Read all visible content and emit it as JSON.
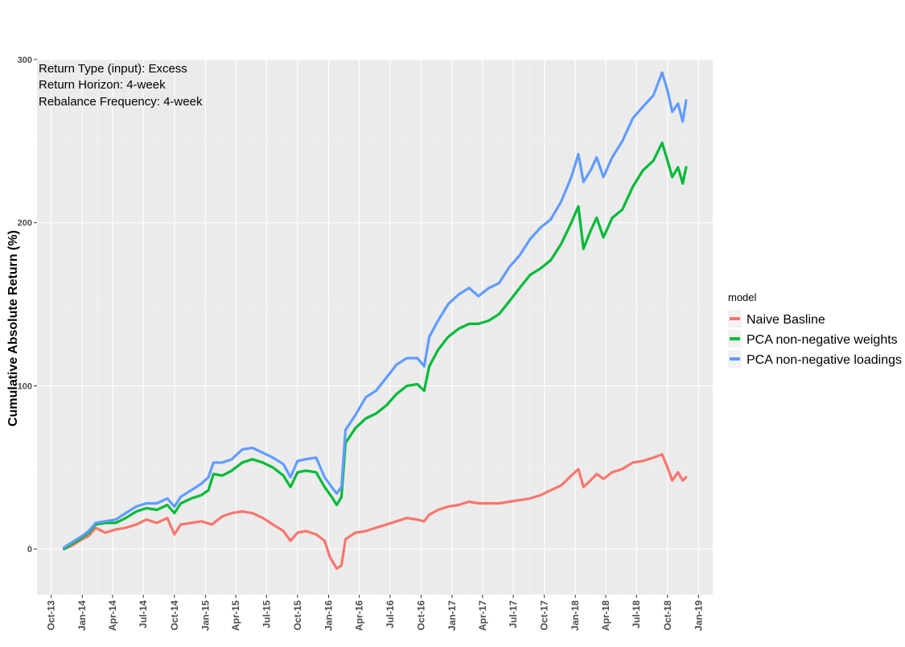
{
  "chart_data": {
    "type": "line",
    "title": "",
    "xlabel": "",
    "ylabel": "Cumulative Absolute Return (%)",
    "ylim": [
      -28,
      300
    ],
    "xlim": [
      "2013-08-20",
      "2019-02-12"
    ],
    "grid": true,
    "legend_position": "right",
    "legend_title": "model",
    "annotations": [
      "Return Type (input): Excess",
      "Return Horizon: 4-week",
      "Rebalance Frequency: 4-week"
    ],
    "y_ticks": [
      0,
      100,
      200,
      300
    ],
    "x_ticks": [
      {
        "date": "2013-10-01",
        "label": "Oct-13"
      },
      {
        "date": "2014-01-01",
        "label": "Jan-14"
      },
      {
        "date": "2014-04-01",
        "label": "Apr-14"
      },
      {
        "date": "2014-07-01",
        "label": "Jul-14"
      },
      {
        "date": "2014-10-01",
        "label": "Oct-14"
      },
      {
        "date": "2015-01-01",
        "label": "Jan-15"
      },
      {
        "date": "2015-04-01",
        "label": "Apr-15"
      },
      {
        "date": "2015-07-01",
        "label": "Jul-15"
      },
      {
        "date": "2015-10-01",
        "label": "Oct-15"
      },
      {
        "date": "2016-01-01",
        "label": "Jan-16"
      },
      {
        "date": "2016-04-01",
        "label": "Apr-16"
      },
      {
        "date": "2016-07-01",
        "label": "Jul-16"
      },
      {
        "date": "2016-10-01",
        "label": "Oct-16"
      },
      {
        "date": "2017-01-01",
        "label": "Jan-17"
      },
      {
        "date": "2017-04-01",
        "label": "Apr-17"
      },
      {
        "date": "2017-07-01",
        "label": "Jul-17"
      },
      {
        "date": "2017-10-01",
        "label": "Oct-17"
      },
      {
        "date": "2018-01-01",
        "label": "Jan-18"
      },
      {
        "date": "2018-04-01",
        "label": "Apr-18"
      },
      {
        "date": "2018-07-01",
        "label": "Jul-18"
      },
      {
        "date": "2018-10-01",
        "label": "Oct-18"
      },
      {
        "date": "2019-01-01",
        "label": "Jan-19"
      }
    ],
    "series": [
      {
        "name": "Naive Basline",
        "color": "#F8766D",
        "points": [
          [
            "2013-11-08",
            0
          ],
          [
            "2013-12-01",
            2
          ],
          [
            "2014-01-01",
            6
          ],
          [
            "2014-01-20",
            8
          ],
          [
            "2014-02-10",
            13
          ],
          [
            "2014-03-10",
            10
          ],
          [
            "2014-04-10",
            12
          ],
          [
            "2014-05-10",
            13
          ],
          [
            "2014-06-10",
            15
          ],
          [
            "2014-07-10",
            18
          ],
          [
            "2014-08-10",
            16
          ],
          [
            "2014-09-10",
            19
          ],
          [
            "2014-10-01",
            9
          ],
          [
            "2014-10-20",
            15
          ],
          [
            "2014-11-20",
            16
          ],
          [
            "2014-12-20",
            17
          ],
          [
            "2015-01-20",
            15
          ],
          [
            "2015-02-20",
            20
          ],
          [
            "2015-03-20",
            22
          ],
          [
            "2015-04-20",
            23
          ],
          [
            "2015-05-20",
            22
          ],
          [
            "2015-06-20",
            19
          ],
          [
            "2015-07-20",
            15
          ],
          [
            "2015-08-20",
            11
          ],
          [
            "2015-09-10",
            5
          ],
          [
            "2015-10-01",
            10
          ],
          [
            "2015-10-25",
            11
          ],
          [
            "2015-11-25",
            9
          ],
          [
            "2015-12-20",
            5
          ],
          [
            "2016-01-05",
            -5
          ],
          [
            "2016-01-25",
            -12
          ],
          [
            "2016-02-08",
            -10
          ],
          [
            "2016-02-20",
            6
          ],
          [
            "2016-03-20",
            10
          ],
          [
            "2016-04-20",
            11
          ],
          [
            "2016-05-20",
            13
          ],
          [
            "2016-06-20",
            15
          ],
          [
            "2016-07-20",
            17
          ],
          [
            "2016-08-20",
            19
          ],
          [
            "2016-09-20",
            18
          ],
          [
            "2016-10-10",
            17
          ],
          [
            "2016-10-25",
            21
          ],
          [
            "2016-11-20",
            24
          ],
          [
            "2016-12-20",
            26
          ],
          [
            "2017-01-20",
            27
          ],
          [
            "2017-02-20",
            29
          ],
          [
            "2017-03-20",
            28
          ],
          [
            "2017-04-20",
            28
          ],
          [
            "2017-05-20",
            28
          ],
          [
            "2017-06-20",
            29
          ],
          [
            "2017-07-20",
            30
          ],
          [
            "2017-08-20",
            31
          ],
          [
            "2017-09-20",
            33
          ],
          [
            "2017-10-20",
            36
          ],
          [
            "2017-11-20",
            39
          ],
          [
            "2017-12-20",
            45
          ],
          [
            "2018-01-10",
            49
          ],
          [
            "2018-01-25",
            38
          ],
          [
            "2018-02-15",
            42
          ],
          [
            "2018-03-05",
            46
          ],
          [
            "2018-03-25",
            43
          ],
          [
            "2018-04-20",
            47
          ],
          [
            "2018-05-20",
            49
          ],
          [
            "2018-06-20",
            53
          ],
          [
            "2018-07-20",
            54
          ],
          [
            "2018-08-20",
            56
          ],
          [
            "2018-09-15",
            58
          ],
          [
            "2018-10-01",
            50
          ],
          [
            "2018-10-15",
            42
          ],
          [
            "2018-11-01",
            47
          ],
          [
            "2018-11-15",
            42
          ],
          [
            "2018-11-25",
            44
          ]
        ]
      },
      {
        "name": "PCA non-negative weights",
        "color": "#00BA38",
        "points": [
          [
            "2013-11-08",
            0
          ],
          [
            "2013-12-01",
            3
          ],
          [
            "2014-01-01",
            7
          ],
          [
            "2014-01-20",
            10
          ],
          [
            "2014-02-10",
            15
          ],
          [
            "2014-03-10",
            16
          ],
          [
            "2014-04-10",
            16
          ],
          [
            "2014-05-10",
            19
          ],
          [
            "2014-06-10",
            23
          ],
          [
            "2014-07-10",
            25
          ],
          [
            "2014-08-10",
            24
          ],
          [
            "2014-09-10",
            27
          ],
          [
            "2014-10-01",
            22
          ],
          [
            "2014-10-20",
            28
          ],
          [
            "2014-11-20",
            31
          ],
          [
            "2014-12-20",
            33
          ],
          [
            "2015-01-10",
            36
          ],
          [
            "2015-01-25",
            46
          ],
          [
            "2015-02-20",
            45
          ],
          [
            "2015-03-20",
            48
          ],
          [
            "2015-04-20",
            53
          ],
          [
            "2015-05-20",
            55
          ],
          [
            "2015-06-20",
            53
          ],
          [
            "2015-07-20",
            50
          ],
          [
            "2015-08-20",
            45
          ],
          [
            "2015-09-10",
            38
          ],
          [
            "2015-10-01",
            47
          ],
          [
            "2015-10-25",
            48
          ],
          [
            "2015-11-25",
            47
          ],
          [
            "2015-12-20",
            38
          ],
          [
            "2016-01-10",
            32
          ],
          [
            "2016-01-25",
            27
          ],
          [
            "2016-02-08",
            32
          ],
          [
            "2016-02-20",
            65
          ],
          [
            "2016-03-20",
            74
          ],
          [
            "2016-04-20",
            80
          ],
          [
            "2016-05-20",
            83
          ],
          [
            "2016-06-20",
            88
          ],
          [
            "2016-07-20",
            95
          ],
          [
            "2016-08-20",
            100
          ],
          [
            "2016-09-20",
            101
          ],
          [
            "2016-10-10",
            97
          ],
          [
            "2016-10-25",
            112
          ],
          [
            "2016-11-20",
            122
          ],
          [
            "2016-12-20",
            130
          ],
          [
            "2017-01-20",
            135
          ],
          [
            "2017-02-20",
            138
          ],
          [
            "2017-03-20",
            138
          ],
          [
            "2017-04-20",
            140
          ],
          [
            "2017-05-20",
            144
          ],
          [
            "2017-06-20",
            152
          ],
          [
            "2017-07-20",
            160
          ],
          [
            "2017-08-20",
            168
          ],
          [
            "2017-09-20",
            172
          ],
          [
            "2017-10-20",
            177
          ],
          [
            "2017-11-20",
            187
          ],
          [
            "2017-12-20",
            200
          ],
          [
            "2018-01-10",
            210
          ],
          [
            "2018-01-25",
            184
          ],
          [
            "2018-02-15",
            195
          ],
          [
            "2018-03-05",
            203
          ],
          [
            "2018-03-25",
            191
          ],
          [
            "2018-04-20",
            203
          ],
          [
            "2018-05-20",
            208
          ],
          [
            "2018-06-20",
            222
          ],
          [
            "2018-07-20",
            232
          ],
          [
            "2018-08-20",
            238
          ],
          [
            "2018-09-15",
            249
          ],
          [
            "2018-10-01",
            238
          ],
          [
            "2018-10-15",
            228
          ],
          [
            "2018-11-01",
            234
          ],
          [
            "2018-11-15",
            224
          ],
          [
            "2018-11-25",
            234
          ]
        ]
      },
      {
        "name": "PCA non-negative loadings",
        "color": "#619CFF",
        "points": [
          [
            "2013-11-08",
            1
          ],
          [
            "2013-12-01",
            4
          ],
          [
            "2014-01-01",
            8
          ],
          [
            "2014-01-20",
            11
          ],
          [
            "2014-02-10",
            16
          ],
          [
            "2014-03-10",
            17
          ],
          [
            "2014-04-10",
            18
          ],
          [
            "2014-05-10",
            22
          ],
          [
            "2014-06-10",
            26
          ],
          [
            "2014-07-10",
            28
          ],
          [
            "2014-08-10",
            28
          ],
          [
            "2014-09-10",
            31
          ],
          [
            "2014-10-01",
            26
          ],
          [
            "2014-10-20",
            32
          ],
          [
            "2014-11-20",
            36
          ],
          [
            "2014-12-20",
            40
          ],
          [
            "2015-01-10",
            44
          ],
          [
            "2015-01-25",
            53
          ],
          [
            "2015-02-20",
            53
          ],
          [
            "2015-03-20",
            55
          ],
          [
            "2015-04-20",
            61
          ],
          [
            "2015-05-20",
            62
          ],
          [
            "2015-06-20",
            59
          ],
          [
            "2015-07-20",
            56
          ],
          [
            "2015-08-20",
            52
          ],
          [
            "2015-09-10",
            44
          ],
          [
            "2015-10-01",
            54
          ],
          [
            "2015-10-25",
            55
          ],
          [
            "2015-11-25",
            56
          ],
          [
            "2015-12-20",
            44
          ],
          [
            "2016-01-10",
            38
          ],
          [
            "2016-01-25",
            34
          ],
          [
            "2016-02-08",
            38
          ],
          [
            "2016-02-20",
            73
          ],
          [
            "2016-03-20",
            82
          ],
          [
            "2016-04-20",
            93
          ],
          [
            "2016-05-20",
            97
          ],
          [
            "2016-06-20",
            105
          ],
          [
            "2016-07-20",
            113
          ],
          [
            "2016-08-20",
            117
          ],
          [
            "2016-09-20",
            117
          ],
          [
            "2016-10-10",
            112
          ],
          [
            "2016-10-25",
            130
          ],
          [
            "2016-11-20",
            140
          ],
          [
            "2016-12-20",
            150
          ],
          [
            "2017-01-20",
            156
          ],
          [
            "2017-02-20",
            160
          ],
          [
            "2017-03-20",
            155
          ],
          [
            "2017-04-20",
            160
          ],
          [
            "2017-05-20",
            163
          ],
          [
            "2017-06-20",
            173
          ],
          [
            "2017-07-20",
            180
          ],
          [
            "2017-08-20",
            190
          ],
          [
            "2017-09-20",
            197
          ],
          [
            "2017-10-20",
            202
          ],
          [
            "2017-11-20",
            213
          ],
          [
            "2017-12-20",
            228
          ],
          [
            "2018-01-10",
            242
          ],
          [
            "2018-01-25",
            225
          ],
          [
            "2018-02-15",
            232
          ],
          [
            "2018-03-05",
            240
          ],
          [
            "2018-03-25",
            228
          ],
          [
            "2018-04-20",
            240
          ],
          [
            "2018-05-20",
            250
          ],
          [
            "2018-06-20",
            264
          ],
          [
            "2018-07-20",
            271
          ],
          [
            "2018-08-20",
            278
          ],
          [
            "2018-09-15",
            292
          ],
          [
            "2018-10-01",
            281
          ],
          [
            "2018-10-15",
            268
          ],
          [
            "2018-11-01",
            273
          ],
          [
            "2018-11-15",
            262
          ],
          [
            "2018-11-25",
            275
          ]
        ]
      }
    ]
  }
}
